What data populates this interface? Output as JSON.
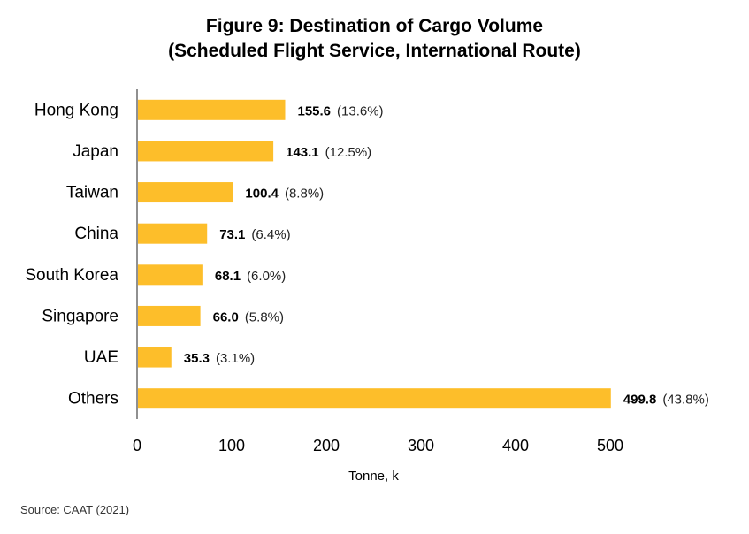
{
  "chart_data": {
    "type": "bar",
    "orientation": "horizontal",
    "title": "Figure 9:  Destination of  Cargo Volume",
    "subtitle": "(Scheduled Flight Service, International Route)",
    "xlabel": "Tonne, k",
    "xlim": [
      0,
      500
    ],
    "xticks": [
      0,
      100,
      200,
      300,
      400,
      500
    ],
    "grid": false,
    "bar_color": "#FDBE2A",
    "categories": [
      "Hong Kong",
      "Japan",
      "Taiwan",
      "China",
      "South Korea",
      "Singapore",
      "UAE",
      "Others"
    ],
    "values": [
      155.6,
      143.1,
      100.4,
      73.1,
      68.1,
      66.0,
      35.3,
      499.8
    ],
    "value_labels": [
      "155.6",
      "143.1",
      "100.4",
      "73.1",
      "68.1",
      "66.0",
      "35.3",
      "499.8"
    ],
    "share_labels": [
      "(13.6%)",
      "(12.5%)",
      "(8.8%)",
      "(6.4%)",
      "(6.0%)",
      "(5.8%)",
      "(3.1%)",
      "(43.8%)"
    ]
  },
  "source": "Source: CAAT (2021)"
}
